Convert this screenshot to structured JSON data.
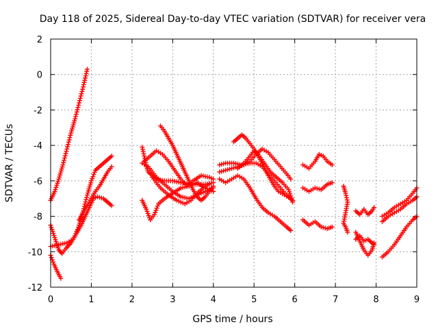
{
  "chart_data": {
    "type": "scatter",
    "title": "Day 118 of 2025, Sidereal Day-to-day VTEC variation (SDTVAR) for receiver vera",
    "xlabel": "GPS time / hours",
    "ylabel": "SDTVAR / TECUs",
    "xlim": [
      0,
      9
    ],
    "ylim": [
      -12,
      2
    ],
    "xticks": [
      "0",
      "1",
      "2",
      "3",
      "4",
      "5",
      "6",
      "7",
      "8",
      "9"
    ],
    "yticks": [
      "2",
      "0",
      "-2",
      "-4",
      "-6",
      "-8",
      "-10",
      "-12"
    ],
    "grid": true,
    "marker": "+",
    "color": "#ff0000",
    "series": [
      {
        "name": "track-1",
        "points": [
          [
            0.0,
            -7.1
          ],
          [
            0.1,
            -6.6
          ],
          [
            0.2,
            -5.9
          ],
          [
            0.3,
            -5.1
          ],
          [
            0.4,
            -4.2
          ],
          [
            0.5,
            -3.3
          ],
          [
            0.6,
            -2.5
          ],
          [
            0.7,
            -1.6
          ],
          [
            0.8,
            -0.7
          ],
          [
            0.9,
            0.3
          ]
        ]
      },
      {
        "name": "track-2",
        "points": [
          [
            0.0,
            -10.2
          ],
          [
            0.08,
            -10.7
          ],
          [
            0.16,
            -11.1
          ],
          [
            0.25,
            -11.5
          ]
        ]
      },
      {
        "name": "track-3",
        "points": [
          [
            0.0,
            -8.5
          ],
          [
            0.1,
            -9.2
          ],
          [
            0.2,
            -9.9
          ],
          [
            0.28,
            -10.1
          ],
          [
            0.38,
            -9.8
          ],
          [
            0.5,
            -9.5
          ],
          [
            0.6,
            -9.1
          ],
          [
            0.7,
            -8.5
          ],
          [
            0.8,
            -7.7
          ],
          [
            0.9,
            -6.8
          ],
          [
            1.0,
            -6.0
          ],
          [
            1.1,
            -5.4
          ],
          [
            1.2,
            -5.2
          ],
          [
            1.3,
            -5.0
          ],
          [
            1.4,
            -4.8
          ],
          [
            1.5,
            -4.6
          ]
        ]
      },
      {
        "name": "track-4",
        "points": [
          [
            0.0,
            -9.7
          ],
          [
            0.2,
            -9.6
          ],
          [
            0.4,
            -9.5
          ],
          [
            0.55,
            -9.3
          ],
          [
            0.65,
            -8.9
          ],
          [
            0.75,
            -8.5
          ],
          [
            0.85,
            -8.0
          ],
          [
            0.95,
            -7.5
          ],
          [
            1.05,
            -7.0
          ],
          [
            1.15,
            -6.9
          ],
          [
            1.3,
            -7.0
          ],
          [
            1.4,
            -7.2
          ],
          [
            1.5,
            -7.4
          ]
        ]
      },
      {
        "name": "track-5",
        "points": [
          [
            0.7,
            -8.2
          ],
          [
            0.8,
            -7.8
          ],
          [
            0.9,
            -7.4
          ],
          [
            1.0,
            -7.0
          ],
          [
            1.1,
            -6.6
          ],
          [
            1.2,
            -6.3
          ],
          [
            1.3,
            -5.9
          ],
          [
            1.4,
            -5.5
          ],
          [
            1.5,
            -5.2
          ]
        ]
      },
      {
        "name": "track-6",
        "points": [
          [
            2.25,
            -4.1
          ],
          [
            2.3,
            -4.6
          ],
          [
            2.35,
            -5.1
          ],
          [
            2.4,
            -5.5
          ],
          [
            2.5,
            -5.7
          ],
          [
            2.6,
            -5.9
          ],
          [
            2.8,
            -6.0
          ],
          [
            3.0,
            -6.0
          ],
          [
            3.2,
            -6.1
          ],
          [
            3.4,
            -6.2
          ],
          [
            3.6,
            -6.2
          ],
          [
            3.8,
            -6.2
          ],
          [
            4.0,
            -6.1
          ]
        ]
      },
      {
        "name": "track-7",
        "points": [
          [
            2.25,
            -5.0
          ],
          [
            2.4,
            -5.2
          ],
          [
            2.5,
            -5.5
          ],
          [
            2.6,
            -5.8
          ],
          [
            2.8,
            -6.2
          ],
          [
            3.0,
            -6.6
          ],
          [
            3.2,
            -6.9
          ],
          [
            3.4,
            -7.0
          ],
          [
            3.6,
            -6.8
          ],
          [
            3.8,
            -6.6
          ],
          [
            4.0,
            -6.4
          ]
        ]
      },
      {
        "name": "track-8",
        "points": [
          [
            2.25,
            -7.1
          ],
          [
            2.35,
            -7.6
          ],
          [
            2.45,
            -8.2
          ],
          [
            2.55,
            -7.9
          ],
          [
            2.65,
            -7.3
          ],
          [
            2.8,
            -7.0
          ],
          [
            3.0,
            -6.7
          ],
          [
            3.2,
            -6.4
          ],
          [
            3.4,
            -6.3
          ],
          [
            3.6,
            -6.1
          ],
          [
            3.8,
            -6.4
          ],
          [
            4.0,
            -6.6
          ]
        ]
      },
      {
        "name": "track-9",
        "points": [
          [
            2.7,
            -2.9
          ],
          [
            2.8,
            -3.2
          ],
          [
            2.9,
            -3.6
          ],
          [
            3.0,
            -4.0
          ],
          [
            3.1,
            -4.5
          ],
          [
            3.2,
            -5.0
          ],
          [
            3.3,
            -5.5
          ],
          [
            3.4,
            -6.0
          ],
          [
            3.5,
            -6.5
          ],
          [
            3.6,
            -6.9
          ],
          [
            3.7,
            -7.1
          ],
          [
            3.8,
            -6.9
          ],
          [
            3.9,
            -6.6
          ],
          [
            4.0,
            -6.3
          ]
        ]
      },
      {
        "name": "track-10",
        "points": [
          [
            2.3,
            -4.9
          ],
          [
            2.45,
            -4.6
          ],
          [
            2.6,
            -4.3
          ],
          [
            2.75,
            -4.5
          ],
          [
            2.9,
            -4.9
          ],
          [
            3.05,
            -5.4
          ],
          [
            3.2,
            -5.9
          ],
          [
            3.35,
            -6.3
          ],
          [
            3.5,
            -6.0
          ],
          [
            3.7,
            -5.7
          ],
          [
            3.9,
            -5.8
          ],
          [
            4.0,
            -5.9
          ]
        ]
      },
      {
        "name": "track-11",
        "points": [
          [
            2.5,
            -5.8
          ],
          [
            2.7,
            -6.4
          ],
          [
            2.9,
            -6.8
          ],
          [
            3.1,
            -7.1
          ],
          [
            3.3,
            -7.3
          ],
          [
            3.45,
            -7.1
          ],
          [
            3.6,
            -6.7
          ],
          [
            3.75,
            -6.4
          ],
          [
            3.9,
            -6.2
          ]
        ]
      },
      {
        "name": "track-12",
        "points": [
          [
            4.15,
            -5.5
          ],
          [
            4.3,
            -5.4
          ],
          [
            4.45,
            -5.3
          ],
          [
            4.6,
            -5.2
          ],
          [
            4.75,
            -5.1
          ],
          [
            4.9,
            -4.9
          ],
          [
            5.05,
            -4.5
          ],
          [
            5.2,
            -4.2
          ],
          [
            5.35,
            -4.4
          ],
          [
            5.5,
            -4.8
          ],
          [
            5.65,
            -5.2
          ],
          [
            5.8,
            -5.6
          ],
          [
            5.9,
            -5.9
          ]
        ]
      },
      {
        "name": "track-13",
        "points": [
          [
            4.15,
            -5.1
          ],
          [
            4.3,
            -5.0
          ],
          [
            4.5,
            -5.0
          ],
          [
            4.7,
            -5.1
          ],
          [
            4.9,
            -5.0
          ],
          [
            5.05,
            -5.0
          ],
          [
            5.2,
            -5.2
          ],
          [
            5.35,
            -5.6
          ],
          [
            5.5,
            -6.0
          ],
          [
            5.65,
            -6.4
          ],
          [
            5.8,
            -6.8
          ],
          [
            5.95,
            -7.1
          ]
        ]
      },
      {
        "name": "track-14",
        "points": [
          [
            4.5,
            -3.8
          ],
          [
            4.6,
            -3.6
          ],
          [
            4.7,
            -3.4
          ],
          [
            4.8,
            -3.6
          ],
          [
            4.9,
            -3.9
          ],
          [
            5.0,
            -4.2
          ],
          [
            5.1,
            -4.6
          ],
          [
            5.2,
            -5.0
          ],
          [
            5.3,
            -5.5
          ],
          [
            5.4,
            -5.9
          ],
          [
            5.5,
            -6.3
          ],
          [
            5.6,
            -6.6
          ],
          [
            5.75,
            -6.8
          ],
          [
            5.9,
            -7.0
          ]
        ]
      },
      {
        "name": "track-15",
        "points": [
          [
            4.15,
            -5.9
          ],
          [
            4.3,
            -6.1
          ],
          [
            4.45,
            -5.9
          ],
          [
            4.6,
            -5.7
          ],
          [
            4.75,
            -5.9
          ],
          [
            4.9,
            -6.4
          ],
          [
            5.05,
            -7.0
          ],
          [
            5.2,
            -7.5
          ],
          [
            5.35,
            -7.8
          ],
          [
            5.5,
            -8.0
          ],
          [
            5.65,
            -8.3
          ],
          [
            5.8,
            -8.6
          ],
          [
            5.9,
            -8.8
          ]
        ]
      },
      {
        "name": "track-16",
        "points": [
          [
            4.6,
            -5.3
          ],
          [
            4.75,
            -5.0
          ],
          [
            4.9,
            -4.6
          ],
          [
            5.0,
            -4.3
          ],
          [
            5.1,
            -4.5
          ],
          [
            5.25,
            -5.0
          ],
          [
            5.4,
            -5.5
          ],
          [
            5.55,
            -5.8
          ],
          [
            5.7,
            -6.1
          ],
          [
            5.85,
            -6.5
          ],
          [
            5.95,
            -7.2
          ]
        ]
      },
      {
        "name": "track-17",
        "points": [
          [
            6.2,
            -5.1
          ],
          [
            6.35,
            -5.3
          ],
          [
            6.5,
            -4.9
          ],
          [
            6.6,
            -4.5
          ],
          [
            6.7,
            -4.6
          ],
          [
            6.8,
            -4.9
          ],
          [
            6.92,
            -5.1
          ]
        ]
      },
      {
        "name": "track-18",
        "points": [
          [
            6.2,
            -6.4
          ],
          [
            6.35,
            -6.6
          ],
          [
            6.5,
            -6.4
          ],
          [
            6.65,
            -6.5
          ],
          [
            6.8,
            -6.2
          ],
          [
            6.92,
            -6.1
          ]
        ]
      },
      {
        "name": "track-19",
        "points": [
          [
            6.2,
            -8.2
          ],
          [
            6.35,
            -8.5
          ],
          [
            6.5,
            -8.3
          ],
          [
            6.65,
            -8.6
          ],
          [
            6.8,
            -8.7
          ],
          [
            6.92,
            -8.6
          ]
        ]
      },
      {
        "name": "track-20",
        "points": [
          [
            7.2,
            -6.3
          ],
          [
            7.25,
            -6.7
          ],
          [
            7.3,
            -7.2
          ],
          [
            7.2,
            -8.4
          ],
          [
            7.25,
            -8.6
          ],
          [
            7.3,
            -8.9
          ]
        ]
      },
      {
        "name": "track-21",
        "points": [
          [
            7.5,
            -8.9
          ],
          [
            7.6,
            -9.4
          ],
          [
            7.7,
            -9.9
          ],
          [
            7.8,
            -10.2
          ],
          [
            7.9,
            -9.9
          ],
          [
            7.95,
            -9.5
          ]
        ]
      },
      {
        "name": "track-22",
        "points": [
          [
            7.5,
            -7.7
          ],
          [
            7.6,
            -7.9
          ],
          [
            7.7,
            -7.6
          ],
          [
            7.8,
            -7.9
          ],
          [
            7.9,
            -7.7
          ],
          [
            7.95,
            -7.5
          ]
        ]
      },
      {
        "name": "track-23",
        "points": [
          [
            7.5,
            -9.3
          ],
          [
            7.6,
            -9.1
          ],
          [
            7.7,
            -9.4
          ],
          [
            7.8,
            -9.3
          ],
          [
            7.9,
            -9.5
          ],
          [
            7.95,
            -9.6
          ]
        ]
      },
      {
        "name": "track-24",
        "points": [
          [
            8.15,
            -8.0
          ],
          [
            8.3,
            -7.8
          ],
          [
            8.45,
            -7.5
          ],
          [
            8.6,
            -7.3
          ],
          [
            8.75,
            -7.1
          ],
          [
            8.9,
            -6.7
          ],
          [
            9.0,
            -6.4
          ]
        ]
      },
      {
        "name": "track-25",
        "points": [
          [
            8.15,
            -10.3
          ],
          [
            8.3,
            -10.0
          ],
          [
            8.45,
            -9.6
          ],
          [
            8.6,
            -9.1
          ],
          [
            8.75,
            -8.6
          ],
          [
            8.9,
            -8.2
          ],
          [
            9.0,
            -8.0
          ]
        ]
      },
      {
        "name": "track-26",
        "points": [
          [
            8.15,
            -8.3
          ],
          [
            8.3,
            -8.0
          ],
          [
            8.45,
            -7.8
          ],
          [
            8.6,
            -7.6
          ],
          [
            8.75,
            -7.3
          ],
          [
            8.9,
            -7.1
          ],
          [
            9.0,
            -6.9
          ]
        ]
      }
    ]
  }
}
